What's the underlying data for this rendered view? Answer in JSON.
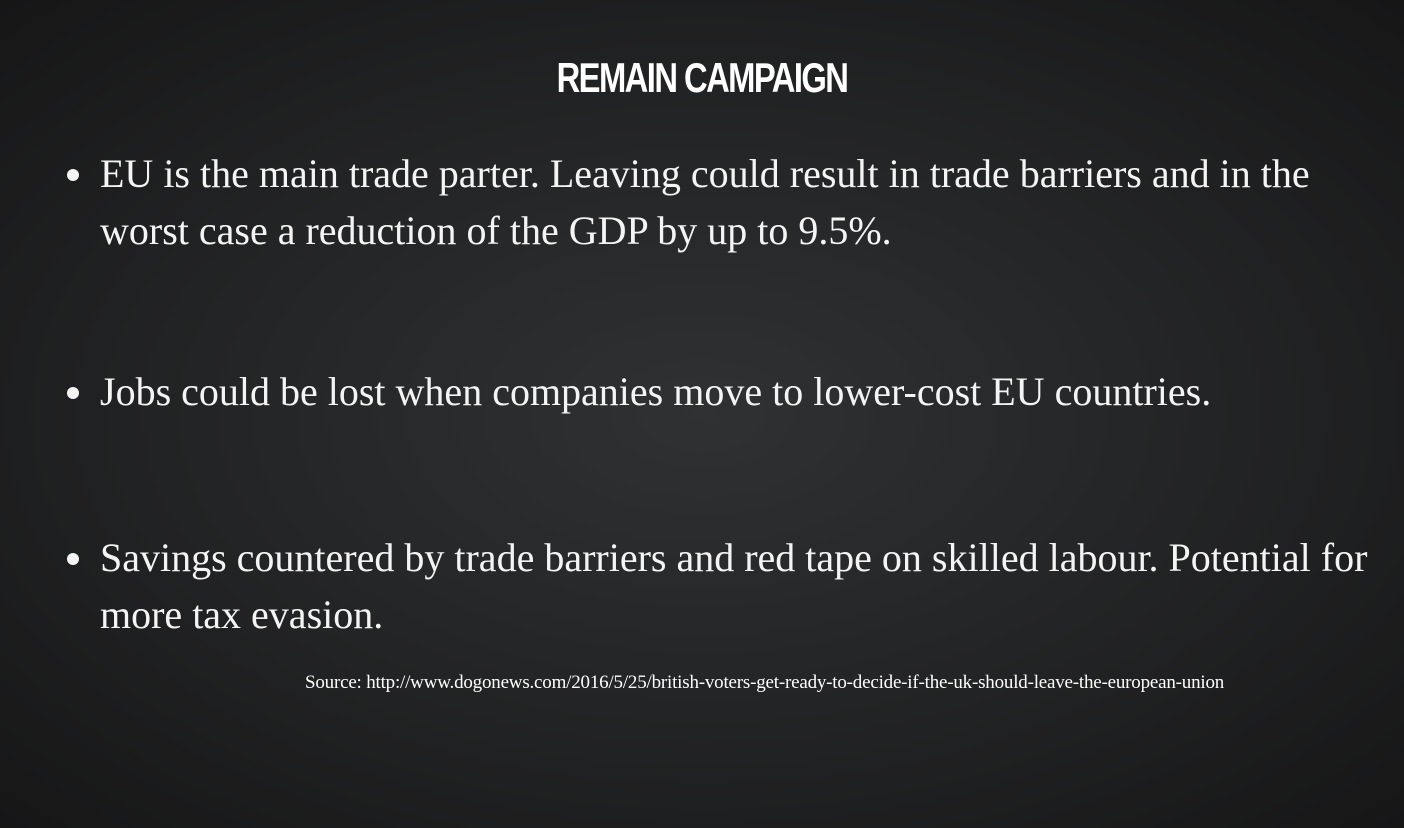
{
  "slide": {
    "title": "REMAIN CAMPAIGN",
    "bullets": [
      "EU is the main trade parter. Leaving could result in trade barriers and in the worst case a reduction of the GDP by up to 9.5%.",
      "Jobs could be lost when companies move to lower-cost EU countries.",
      "Savings countered by trade barriers and red tape on skilled labour. Potential for more tax evasion."
    ],
    "source": "Source: http://www.dogonews.com/2016/5/25/british-voters-get-ready-to-decide-if-the-uk-should-leave-the-european-union"
  },
  "colors": {
    "background": "#222324",
    "text": "#f5f5f5"
  }
}
